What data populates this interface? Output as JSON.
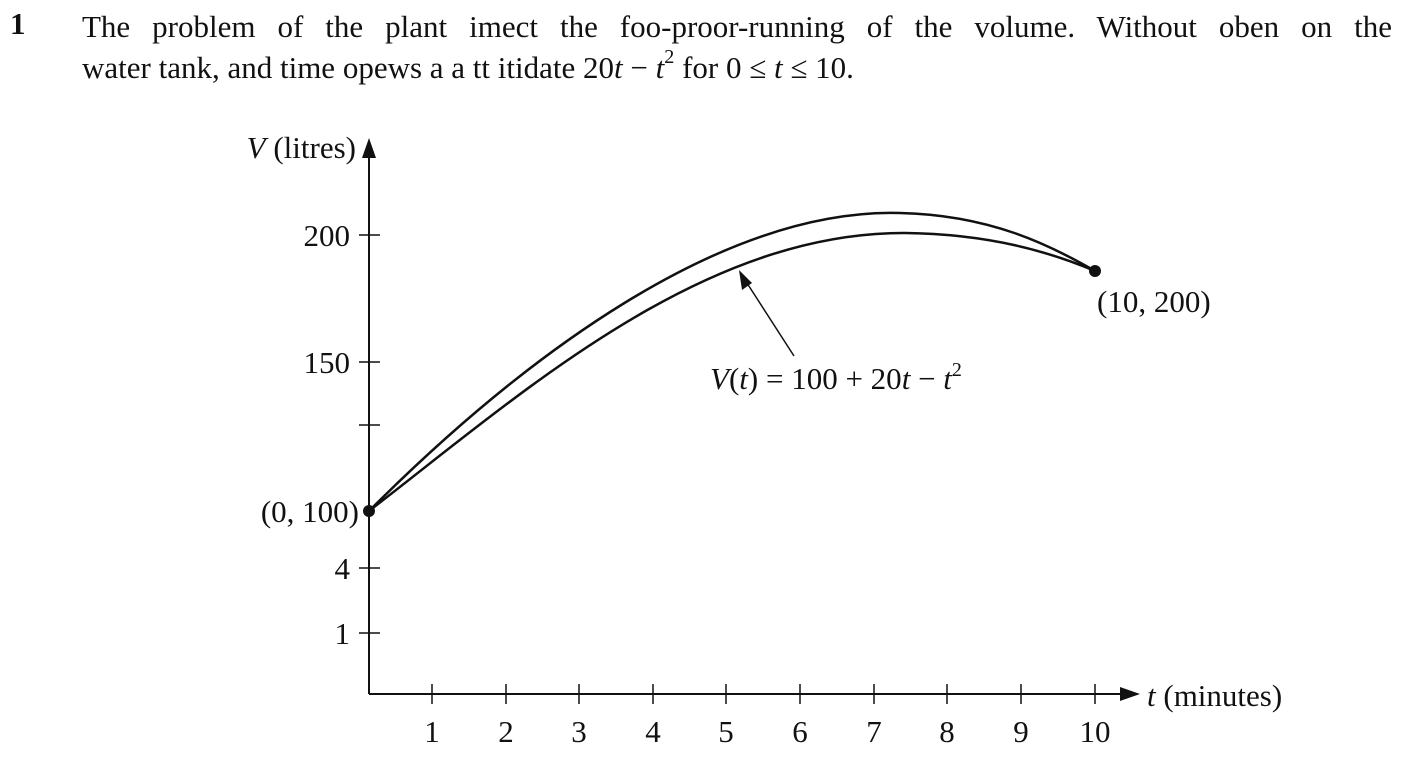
{
  "question": {
    "number": "1",
    "line1": "The problem of the plant imect the foo-proor-running of the volume. Without oben on the",
    "line2_prefix": "water tank, and time opews a a tt itidate 20",
    "line2_var": "t",
    "line2_minus": " − ",
    "line2_var2": "t",
    "line2_exp": "2",
    "line2_suffix": " for 0 ≤ ",
    "line2_var3": "t",
    "line2_end": " ≤ 10."
  },
  "figure": {
    "y_axis": {
      "var": "V",
      "unit": " (litres)",
      "tick_labels": [
        "200",
        "150",
        "4",
        "1"
      ]
    },
    "x_axis": {
      "var": "t",
      "unit": " (minutes)",
      "tick_labels": [
        "1",
        "2",
        "3",
        "4",
        "5",
        "6",
        "7",
        "8",
        "9",
        "10"
      ]
    },
    "points": [
      {
        "label": "(0, 100)"
      },
      {
        "label": "(10, 200)"
      }
    ],
    "curve_label": {
      "func": "V",
      "arg": "t",
      "rest": " = 100 + 20",
      "var": "t",
      "minus": " − ",
      "var2": "t",
      "exp": "2"
    }
  },
  "colors": {
    "ink": "#111111",
    "background": "#ffffff"
  }
}
